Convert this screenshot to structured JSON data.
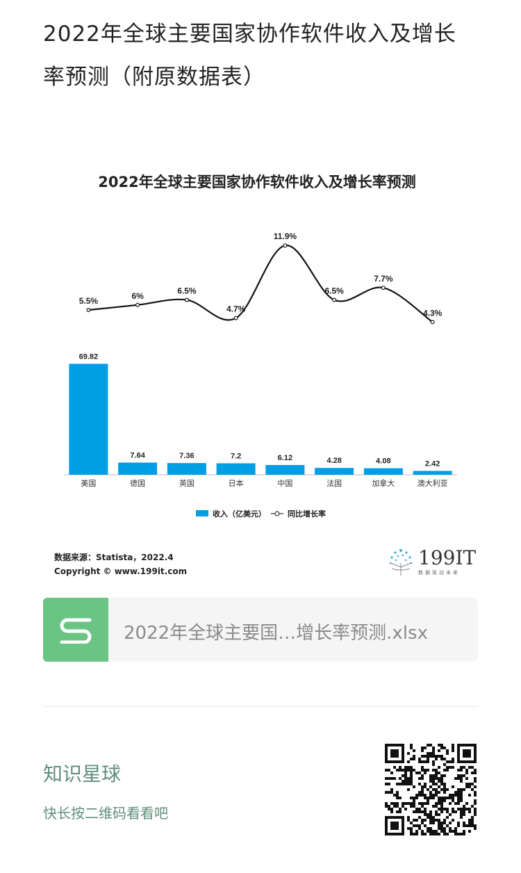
{
  "page": {
    "title_line1": "2022年全球主要国家协作软件收入及增长",
    "title_line2": "率预测（附原数据表）"
  },
  "chart_data": {
    "type": "bar",
    "title": "2022年全球主要国家协作软件收入及增长率预测",
    "categories": [
      "美国",
      "德国",
      "英国",
      "日本",
      "中国",
      "法国",
      "加拿大",
      "澳大利亚"
    ],
    "series": [
      {
        "name": "收入（亿美元）",
        "type": "bar",
        "values": [
          69.82,
          7.64,
          7.36,
          7.2,
          6.12,
          4.28,
          4.08,
          2.42
        ],
        "value_labels": [
          "69.82",
          "7.64",
          "7.36",
          "7.2",
          "6.12",
          "4.28",
          "4.08",
          "2.42"
        ]
      },
      {
        "name": "同比增长率",
        "type": "line",
        "values": [
          5.5,
          6,
          6.5,
          4.7,
          11.9,
          6.5,
          7.7,
          4.3
        ],
        "value_labels": [
          "5.5%",
          "6%",
          "6.5%",
          "4.7%",
          "11.9%",
          "6.5%",
          "7.7%",
          "4.3%"
        ]
      }
    ],
    "legend_position": "bottom",
    "grid": false,
    "colors": {
      "bar": "#009ee5",
      "line": "#111111"
    }
  },
  "source": {
    "label": "数据来源：Statista，2022.4",
    "copyright": "Copyright © www.199it.com"
  },
  "logo": {
    "text": "199IT",
    "sub": "数据驱动未来"
  },
  "file_card": {
    "icon": "spreadsheet-s-icon",
    "name": "2022年全球主要国…增长率预测.xlsx",
    "accent": "#6ac484"
  },
  "footer": {
    "title": "知识星球",
    "subtitle": "快长按二维码看看吧",
    "accent": "#5f8e7b",
    "qr_icon": "qr-code-icon"
  }
}
